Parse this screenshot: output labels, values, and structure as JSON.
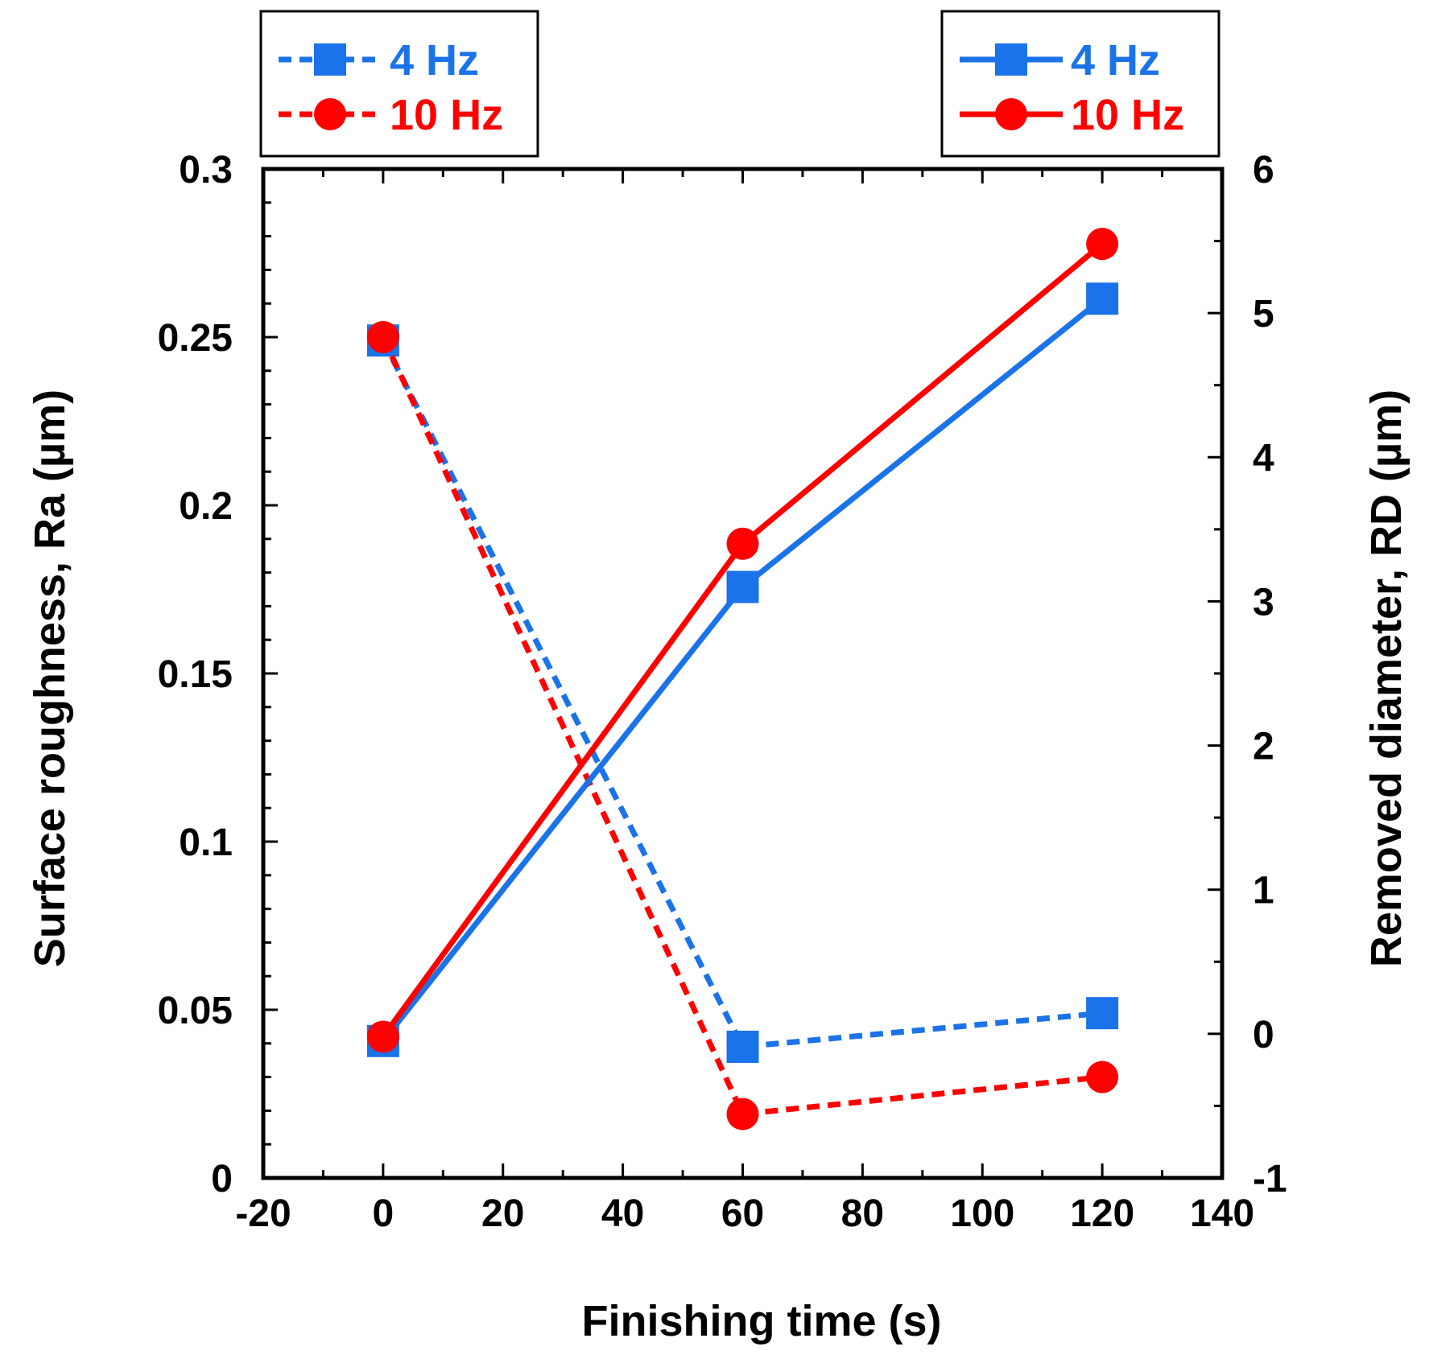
{
  "chart_data": {
    "type": "line",
    "xlabel": "Finishing time (s)",
    "ylabel_left": "Surface roughness, Ra (µm)",
    "ylabel_right": "Removed diameter, RD (µm)",
    "xlim": [
      -20,
      140
    ],
    "ylim_left": [
      0,
      0.3
    ],
    "ylim_right": [
      -1,
      6
    ],
    "x_ticks": [
      -20,
      0,
      20,
      40,
      60,
      80,
      100,
      120,
      140
    ],
    "x_tick_labels": [
      "-20",
      "0",
      "20",
      "40",
      "60",
      "80",
      "100",
      "120",
      "140"
    ],
    "y_left_ticks": [
      0,
      0.05,
      0.1,
      0.15,
      0.2,
      0.25,
      0.3
    ],
    "y_left_tick_labels": [
      "0",
      "0.05",
      "0.1",
      "0.15",
      "0.2",
      "0.25",
      "0.3"
    ],
    "y_right_ticks": [
      -1,
      0,
      1,
      2,
      3,
      4,
      5,
      6
    ],
    "y_right_tick_labels": [
      "-1",
      "0",
      "1",
      "2",
      "3",
      "4",
      "5",
      "6"
    ],
    "grid": false,
    "colors": {
      "blue": "#1a73e8",
      "red": "#ff0000",
      "axis": "#000000"
    },
    "series": [
      {
        "name": "4 Hz",
        "axis": "left",
        "style": "dashed",
        "marker": "square",
        "color": "#1a73e8",
        "x": [
          0,
          60,
          120
        ],
        "y": [
          0.249,
          0.039,
          0.049
        ]
      },
      {
        "name": "10 Hz",
        "axis": "left",
        "style": "dashed",
        "marker": "circle",
        "color": "#ff0000",
        "x": [
          0,
          60,
          120
        ],
        "y": [
          0.25,
          0.019,
          0.03
        ]
      },
      {
        "name": "4 Hz",
        "axis": "right",
        "style": "solid",
        "marker": "square",
        "color": "#1a73e8",
        "x": [
          0,
          60,
          120
        ],
        "y": [
          -0.05,
          3.1,
          5.1
        ]
      },
      {
        "name": "10 Hz",
        "axis": "right",
        "style": "solid",
        "marker": "circle",
        "color": "#ff0000",
        "x": [
          0,
          60,
          120
        ],
        "y": [
          -0.02,
          3.4,
          5.48
        ]
      }
    ],
    "legends": [
      {
        "position": "top-left",
        "entries": [
          "4 Hz",
          "10 Hz"
        ],
        "series_index": [
          0,
          1
        ]
      },
      {
        "position": "top-right",
        "entries": [
          "4 Hz",
          "10 Hz"
        ],
        "series_index": [
          2,
          3
        ]
      }
    ]
  }
}
